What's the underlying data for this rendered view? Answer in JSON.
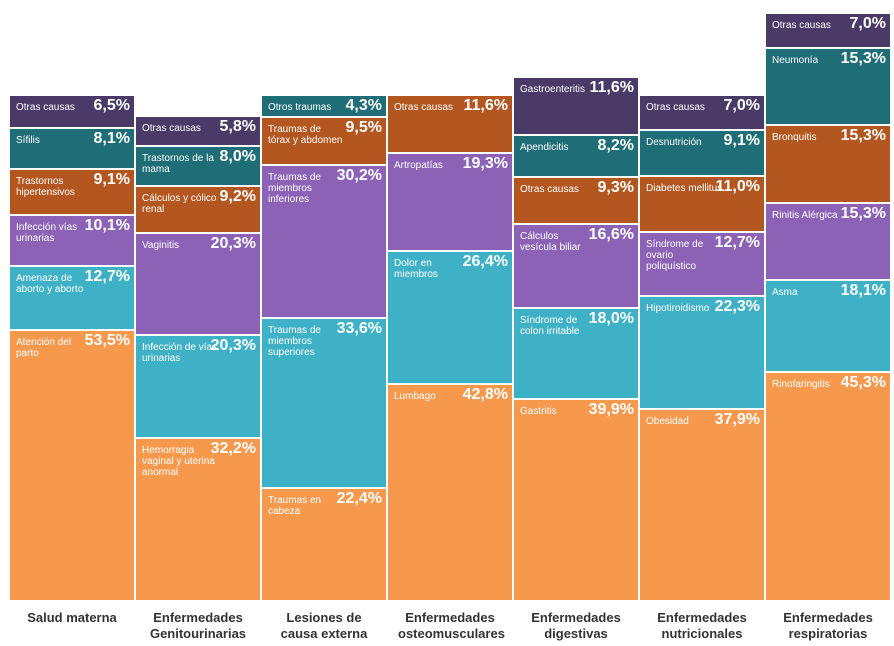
{
  "chart_data": {
    "type": "stacked_bar",
    "ylim": [
      0,
      117
    ],
    "columns": [
      {
        "name": "Salud materna",
        "segments": [
          {
            "label": "Atención del parto",
            "value": 53.5,
            "value_label": "53,5%",
            "color": "#f7994d"
          },
          {
            "label": "Amenaza de aborto y aborto",
            "value": 12.7,
            "value_label": "12,7%",
            "color": "#3fb1c6"
          },
          {
            "label": "Infección vías urinarias",
            "value": 10.1,
            "value_label": "10,1%",
            "color": "#8c62b6"
          },
          {
            "label": "Trastornos hipertensivos",
            "value": 9.1,
            "value_label": "9,1%",
            "color": "#b3561f"
          },
          {
            "label": "Sífilis",
            "value": 8.1,
            "value_label": "8,1%",
            "color": "#1f6d77"
          },
          {
            "label": "Otras causas",
            "value": 6.5,
            "value_label": "6,5%",
            "color": "#4a3a68"
          }
        ]
      },
      {
        "name": "Enfermedades Genitourinarias",
        "segments": [
          {
            "label": "Hemorragia vaginal y uterina anormal",
            "value": 32.2,
            "value_label": "32,2%",
            "color": "#f7994d"
          },
          {
            "label": "Infección de vías urinarias",
            "value": 20.3,
            "value_label": "20,3%",
            "color": "#3fb1c6"
          },
          {
            "label": "Vaginitis",
            "value": 20.3,
            "value_label": "20,3%",
            "color": "#8c62b6"
          },
          {
            "label": "Cálculos y cólico renal",
            "value": 9.2,
            "value_label": "9,2%",
            "color": "#b3561f"
          },
          {
            "label": "Trastornos de la mama",
            "value": 8.0,
            "value_label": "8,0%",
            "color": "#1f6d77"
          },
          {
            "label": "Otras causas",
            "value": 5.8,
            "value_label": "5,8%",
            "color": "#4a3a68"
          }
        ]
      },
      {
        "name": "Lesiones de causa externa",
        "segments": [
          {
            "label": "Traumas en cabeza",
            "value": 22.4,
            "value_label": "22,4%",
            "color": "#f7994d"
          },
          {
            "label": "Traumas de miembros superiores",
            "value": 33.6,
            "value_label": "33,6%",
            "color": "#3fb1c6"
          },
          {
            "label": "Traumas de miembros inferiores",
            "value": 30.2,
            "value_label": "30,2%",
            "color": "#8c62b6"
          },
          {
            "label": "Traumas de tórax y abdomen",
            "value": 9.5,
            "value_label": "9,5%",
            "color": "#b3561f"
          },
          {
            "label": "Otros traumas",
            "value": 4.3,
            "value_label": "4,3%",
            "color": "#1f6d77"
          }
        ]
      },
      {
        "name": "Enfermedades osteomusculares",
        "segments": [
          {
            "label": "Lumbago",
            "value": 42.8,
            "value_label": "42,8%",
            "color": "#f7994d"
          },
          {
            "label": "Dolor en miembros",
            "value": 26.4,
            "value_label": "26,4%",
            "color": "#3fb1c6"
          },
          {
            "label": "Artropatías",
            "value": 19.3,
            "value_label": "19,3%",
            "color": "#8c62b6"
          },
          {
            "label": "Otras causas",
            "value": 11.6,
            "value_label": "11,6%",
            "color": "#b3561f"
          }
        ]
      },
      {
        "name": "Enfermedades digestivas",
        "segments": [
          {
            "label": "Gastritis",
            "value": 39.9,
            "value_label": "39,9%",
            "color": "#f7994d"
          },
          {
            "label": "Síndrome de colon irritable",
            "value": 18.0,
            "value_label": "18,0%",
            "color": "#3fb1c6"
          },
          {
            "label": "Cálculos vesícula biliar",
            "value": 16.6,
            "value_label": "16,6%",
            "color": "#8c62b6"
          },
          {
            "label": "Otras causas",
            "value": 9.3,
            "value_label": "9,3%",
            "color": "#b3561f"
          },
          {
            "label": "Apendicitis",
            "value": 8.2,
            "value_label": "8,2%",
            "color": "#1f6d77"
          },
          {
            "label": "Gastroenteritis",
            "value": 11.6,
            "value_label": "11,6%",
            "color": "#4a3a68"
          }
        ]
      },
      {
        "name": "Enfermedades nutricionales",
        "segments": [
          {
            "label": "Obesidad",
            "value": 37.9,
            "value_label": "37,9%",
            "color": "#f7994d"
          },
          {
            "label": "Hipotiroidismo",
            "value": 22.3,
            "value_label": "22,3%",
            "color": "#3fb1c6"
          },
          {
            "label": "Síndrome de ovario poliquístico",
            "value": 12.7,
            "value_label": "12,7%",
            "color": "#8c62b6"
          },
          {
            "label": "Diabetes mellitus",
            "value": 11.0,
            "value_label": "11,0%",
            "color": "#b3561f"
          },
          {
            "label": "Desnutrición",
            "value": 9.1,
            "value_label": "9,1%",
            "color": "#1f6d77"
          },
          {
            "label": "Otras causas",
            "value": 7.0,
            "value_label": "7,0%",
            "color": "#4a3a68"
          }
        ]
      },
      {
        "name": "Enfermedades respiratorias",
        "segments": [
          {
            "label": "Rinofaringitis",
            "value": 45.3,
            "value_label": "45,3%",
            "color": "#f7994d"
          },
          {
            "label": "Asma",
            "value": 18.1,
            "value_label": "18,1%",
            "color": "#3fb1c6"
          },
          {
            "label": "Rinitis Alérgica",
            "value": 15.3,
            "value_label": "15,3%",
            "color": "#8c62b6"
          },
          {
            "label": "Bronquitis",
            "value": 15.3,
            "value_label": "15,3%",
            "color": "#b3561f"
          },
          {
            "label": "Neumonía",
            "value": 15.3,
            "value_label": "15,3%",
            "color": "#1f6d77"
          },
          {
            "label": "Otras causas",
            "value": 7.0,
            "value_label": "7,0%",
            "color": "#4a3a68"
          }
        ]
      }
    ]
  }
}
